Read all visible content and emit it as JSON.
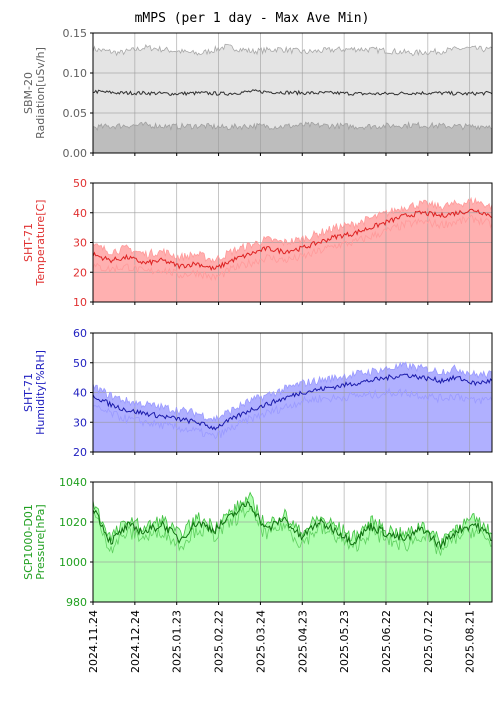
{
  "chart_data": {
    "title": "mMPS (per 1 day - Max Ave Min)",
    "x_dates": [
      "2024.11.24",
      "2024.12.24",
      "2025.01.23",
      "2025.02.22",
      "2025.03.24",
      "2025.04.23",
      "2025.05.23",
      "2025.06.22",
      "2025.07.22",
      "2025.08.21"
    ],
    "x_range": [
      "2024.11.24",
      "2025.09.06"
    ],
    "grid": true,
    "panels": [
      {
        "type": "area",
        "ylabel_lines": [
          "SBM-20",
          "Radiation[uSv/h]"
        ],
        "label_color": "#606060",
        "ylim": [
          0.0,
          0.15
        ],
        "yticks": [
          "0.00",
          "0.05",
          "0.10",
          "0.15"
        ],
        "colors": {
          "fill_max": "#e4e4e4",
          "fill_min": "#bdbdbd",
          "max_line": "#a8a8a8",
          "min_line": "#a0a0a0",
          "ave_line": "#303030"
        },
        "series": {
          "max": [
            0.13,
            0.125,
            0.132,
            0.128,
            0.124,
            0.133,
            0.127,
            0.13,
            0.126,
            0.129,
            0.13,
            0.128,
            0.125,
            0.127,
            0.131,
            0.129
          ],
          "ave": [
            0.077,
            0.075,
            0.075,
            0.074,
            0.075,
            0.074,
            0.077,
            0.076,
            0.075,
            0.075,
            0.074,
            0.074,
            0.075,
            0.075,
            0.074,
            0.075
          ],
          "min": [
            0.032,
            0.034,
            0.035,
            0.033,
            0.034,
            0.032,
            0.034,
            0.033,
            0.035,
            0.034,
            0.033,
            0.034,
            0.035,
            0.034,
            0.033,
            0.034
          ]
        }
      },
      {
        "type": "area",
        "ylabel_lines": [
          "SHT-71",
          "Temperature[C]"
        ],
        "label_color": "#e03030",
        "ylim": [
          10,
          50
        ],
        "yticks": [
          "10",
          "20",
          "30",
          "40",
          "50"
        ],
        "colors": {
          "fill_max": "#ffb0b0",
          "fill_min": "#ffb0b0",
          "max_line": "#ff9a9a",
          "min_line": "#ff9a9a",
          "ave_line": "#dd2222"
        },
        "series": {
          "max": [
            29,
            27,
            28,
            26,
            27,
            25,
            26,
            24,
            27,
            29,
            31,
            30,
            31,
            33,
            35,
            36,
            38,
            40,
            42,
            43,
            42,
            43,
            44,
            42
          ],
          "ave": [
            26,
            24,
            25,
            23,
            24,
            22,
            23,
            21,
            24,
            26,
            28,
            27,
            28,
            30,
            32,
            33,
            35,
            37,
            39,
            40,
            39,
            40,
            41,
            39
          ],
          "min": [
            22,
            21,
            22,
            20,
            21,
            19,
            20,
            18,
            21,
            23,
            25,
            24,
            25,
            27,
            29,
            30,
            32,
            34,
            36,
            37,
            36,
            37,
            38,
            36
          ]
        }
      },
      {
        "type": "area",
        "ylabel_lines": [
          "SHT-71",
          "Humidity[%RH]"
        ],
        "label_color": "#2020c0",
        "ylim": [
          20,
          60
        ],
        "yticks": [
          "20",
          "30",
          "40",
          "50",
          "60"
        ],
        "colors": {
          "fill_max": "#b0b0ff",
          "fill_min": "#b0b0ff",
          "max_line": "#9a9aff",
          "min_line": "#9a9aff",
          "ave_line": "#1a1aaa"
        },
        "series": {
          "max": [
            42,
            39,
            37,
            36,
            35,
            34,
            33,
            31,
            34,
            37,
            39,
            41,
            43,
            44,
            45,
            46,
            47,
            48,
            49,
            48,
            47,
            48,
            46,
            46
          ],
          "ave": [
            39,
            36,
            34,
            33,
            32,
            31,
            30,
            28,
            31,
            34,
            36,
            38,
            40,
            41,
            42,
            43,
            44,
            45,
            46,
            45,
            44,
            45,
            43,
            44
          ],
          "min": [
            35,
            33,
            31,
            30,
            29,
            28,
            27,
            25,
            28,
            31,
            33,
            35,
            37,
            38,
            38,
            39,
            39,
            40,
            40,
            39,
            38,
            39,
            37,
            38
          ]
        }
      },
      {
        "type": "area",
        "ylabel_lines": [
          "SCP1000-D01",
          "Pressure[hPa]"
        ],
        "label_color": "#20a020",
        "ylim": [
          980,
          1040
        ],
        "yticks": [
          "980",
          "1000",
          "1020",
          "1040"
        ],
        "colors": {
          "fill_max": "#b0ffb0",
          "fill_min": "#b0ffb0",
          "max_line": "#40c040",
          "min_line": "#60d060",
          "ave_line": "#107010"
        },
        "series": {
          "max": [
            1030,
            1012,
            1020,
            1017,
            1021,
            1013,
            1022,
            1018,
            1025,
            1032,
            1018,
            1024,
            1014,
            1022,
            1018,
            1012,
            1020,
            1016,
            1013,
            1019,
            1010,
            1018,
            1021,
            1014
          ],
          "ave": [
            1028,
            1010,
            1018,
            1015,
            1019,
            1011,
            1020,
            1016,
            1023,
            1030,
            1016,
            1022,
            1012,
            1020,
            1016,
            1010,
            1018,
            1014,
            1011,
            1017,
            1008,
            1016,
            1019,
            1012
          ],
          "min": [
            1025,
            1007,
            1015,
            1012,
            1016,
            1008,
            1017,
            1013,
            1020,
            1027,
            1013,
            1019,
            1009,
            1017,
            1013,
            1007,
            1015,
            1011,
            1008,
            1014,
            1005,
            1013,
            1016,
            1009
          ]
        }
      }
    ]
  }
}
